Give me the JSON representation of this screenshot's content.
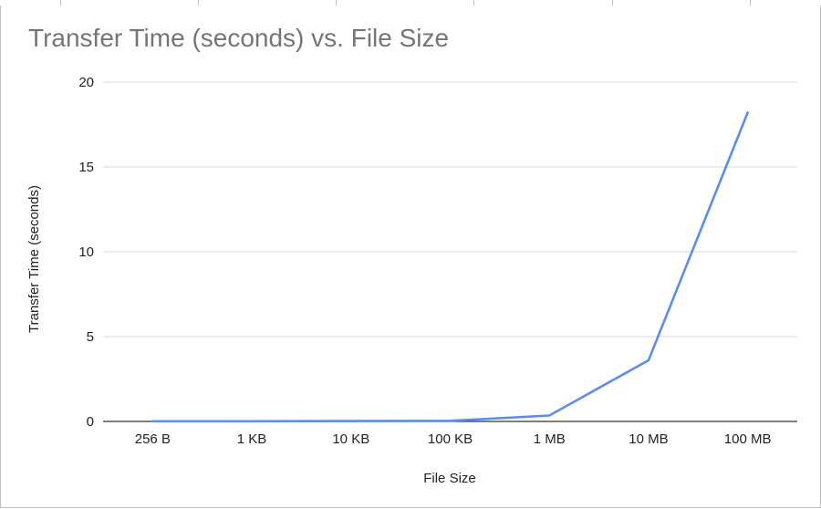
{
  "chart_data": {
    "type": "line",
    "title": "Transfer Time (seconds) vs. File Size",
    "xlabel": "File Size",
    "ylabel": "Transfer Time (seconds)",
    "categories": [
      "256 B",
      "1 KB",
      "10 KB",
      "100 KB",
      "1 MB",
      "10 MB",
      "100 MB"
    ],
    "series": [
      {
        "values": [
          0.01,
          0.01,
          0.02,
          0.04,
          0.35,
          3.6,
          18.2
        ]
      }
    ],
    "ylim": [
      0,
      20
    ],
    "yticks": [
      0,
      5,
      10,
      15,
      20
    ],
    "grid": true,
    "legend": "none",
    "colors": {
      "line": "#5b8def",
      "grid": "#d9d9d9",
      "axis": "#333333",
      "title": "#757575"
    }
  }
}
